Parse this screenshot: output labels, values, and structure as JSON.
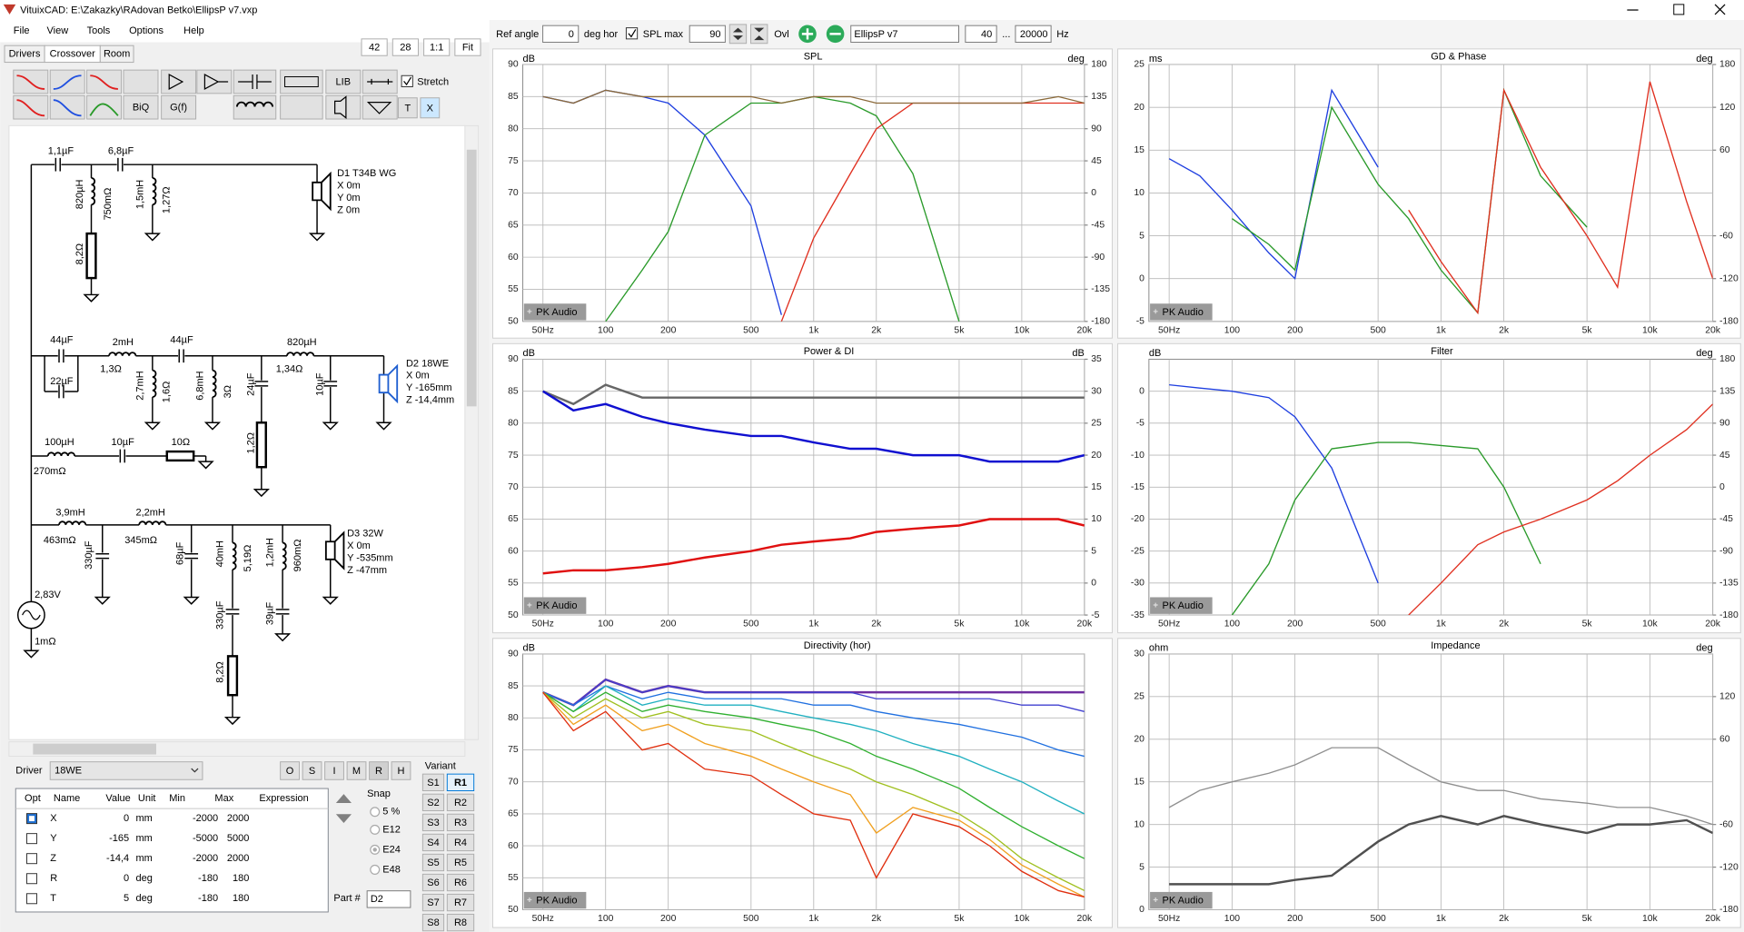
{
  "window": {
    "title": "VituixCAD: E:\\Zakazky\\RAdovan Betko\\EllipsP v7.vxp"
  },
  "menu": [
    "File",
    "View",
    "Tools",
    "Options",
    "Help"
  ],
  "zoom": [
    "42",
    "28",
    "1:1",
    "Fit"
  ],
  "tabs": [
    "Drivers",
    "Crossover",
    "Room"
  ],
  "tool_buttons": [
    "LIB",
    "BiQ",
    "G(f)",
    "T",
    "X"
  ],
  "stretch": "Stretch",
  "schematic": {
    "labels": [
      "1,1µF",
      "6,8µF",
      "820µH",
      "750mΩ",
      "1,5mH",
      "1,27Ω",
      "8,2Ω",
      "D1 T34B WG",
      "X  0m",
      "Y  0m",
      "Z  0m",
      "44µF",
      "2mH",
      "44µF",
      "820µH",
      "1,3Ω",
      "1,34Ω",
      "22µF",
      "2,7mH",
      "1,6Ω",
      "6,8mH",
      "3Ω",
      "24µF",
      "10µF",
      "1,2Ω",
      "D2 18WE",
      "X  0m",
      "Y  -165mm",
      "Z  -14,4mm",
      "100µH",
      "270mΩ",
      "10µF",
      "10Ω",
      "3,9mH",
      "2,2mH",
      "463mΩ",
      "345mΩ",
      "330µF",
      "68µF",
      "40mH",
      "5,19Ω",
      "1,2mH",
      "960mΩ",
      "D3 32W",
      "X  0m",
      "Y  -535mm",
      "Z  -47mm",
      "330µF",
      "39µF",
      "8,2Ω",
      "2,83V",
      "1mΩ"
    ]
  },
  "driver_panel": {
    "label": "Driver",
    "driver": "18WE",
    "modes": [
      "O",
      "S",
      "I",
      "M",
      "R",
      "H"
    ],
    "table": {
      "headers": [
        "Opt",
        "Name",
        "Value",
        "Unit",
        "Min",
        "Max",
        "Expression"
      ],
      "rows": [
        [
          "X",
          "0",
          "mm",
          "-2000",
          "2000"
        ],
        [
          "Y",
          "-165",
          "mm",
          "-5000",
          "5000"
        ],
        [
          "Z",
          "-14,4",
          "mm",
          "-2000",
          "2000"
        ],
        [
          "R",
          "0",
          "deg",
          "-180",
          "180"
        ],
        [
          "T",
          "5",
          "deg",
          "-180",
          "180"
        ]
      ]
    },
    "snap": {
      "label": "Snap",
      "options": [
        "5 %",
        "E12",
        "E24",
        "E48"
      ]
    },
    "part_label": "Part #",
    "part": "D2",
    "variant": {
      "label": "Variant",
      "s": [
        "S1",
        "S2",
        "S3",
        "S4",
        "S5",
        "S6",
        "S7",
        "S8"
      ],
      "r": [
        "R1",
        "R2",
        "R3",
        "R4",
        "R5",
        "R6",
        "R7",
        "R8"
      ]
    }
  },
  "chart_toolbar": {
    "ref_angle_label": "Ref angle",
    "ref_angle": "0",
    "deg_hor": "deg hor",
    "spl_max_label": "SPL max",
    "spl_max": "90",
    "ovl": "Ovl",
    "name": "EllipsP v7",
    "f_min": "40",
    "dots": "...",
    "f_max": "20000",
    "hz": "Hz"
  },
  "watermark": "PK Audio",
  "chart_data": [
    {
      "type": "line",
      "title": "SPL",
      "y_label": "dB",
      "y2_label": "deg",
      "xscale": "log",
      "grid": true,
      "x": [
        50,
        70,
        100,
        150,
        200,
        300,
        500,
        700,
        1000,
        1500,
        2000,
        3000,
        5000,
        7000,
        10000,
        15000,
        20000
      ],
      "xlim": [
        40,
        20000
      ],
      "xticks": [
        {
          "value": 50,
          "label": "50Hz"
        },
        100,
        200,
        500,
        {
          "value": 1000,
          "label": "1k"
        },
        {
          "value": 2000,
          "label": "2k"
        },
        {
          "value": 5000,
          "label": "5k"
        },
        {
          "value": 10000,
          "label": "10k"
        },
        {
          "value": 20000,
          "label": "20k"
        }
      ],
      "ylim": [
        50,
        90
      ],
      "yticks": [
        90,
        85,
        80,
        75,
        70,
        65,
        60,
        55,
        50
      ],
      "y2lim": [
        -180,
        180
      ],
      "y2ticks": [
        180,
        135,
        90,
        45,
        0,
        -45,
        -90,
        -135,
        -180
      ],
      "series": [
        {
          "color": "#1f3fe0",
          "values": [
            85,
            84,
            86,
            85,
            84,
            79,
            68,
            51,
            null,
            null,
            null,
            null,
            null,
            null,
            null,
            null,
            null
          ]
        },
        {
          "color": "#2a9a2a",
          "values": [
            null,
            null,
            50,
            58,
            64,
            79,
            84,
            84,
            85,
            84,
            82,
            73,
            50,
            null,
            null,
            null,
            null
          ]
        },
        {
          "color": "#e03020",
          "values": [
            null,
            null,
            null,
            null,
            null,
            null,
            null,
            50,
            63,
            73,
            80,
            84,
            84,
            84,
            84,
            84,
            84
          ]
        },
        {
          "color": "#8b6a3a",
          "values": [
            85,
            84,
            86,
            85,
            85,
            85,
            85,
            84,
            85,
            85,
            84,
            84,
            84,
            84,
            84,
            85,
            84
          ]
        }
      ]
    },
    {
      "type": "line",
      "title": "GD & Phase",
      "y_label": "ms",
      "y2_label": "deg",
      "xscale": "log",
      "grid": true,
      "x": [
        50,
        70,
        100,
        150,
        200,
        300,
        500,
        700,
        1000,
        1500,
        2000,
        3000,
        5000,
        7000,
        10000,
        15000,
        20000
      ],
      "xlim": [
        40,
        20000
      ],
      "xticks": [
        {
          "value": 50,
          "label": "50Hz"
        },
        100,
        200,
        500,
        {
          "value": 1000,
          "label": "1k"
        },
        {
          "value": 2000,
          "label": "2k"
        },
        {
          "value": 5000,
          "label": "5k"
        },
        {
          "value": 10000,
          "label": "10k"
        },
        {
          "value": 20000,
          "label": "20k"
        }
      ],
      "ylim": [
        -5,
        25
      ],
      "yticks": [
        25,
        20,
        15,
        10,
        5,
        0,
        -5
      ],
      "y2lim": [
        -180,
        180
      ],
      "y2ticks": [
        180,
        120,
        60,
        -60,
        -120,
        -180
      ],
      "series": [
        {
          "color": "#1f3fe0",
          "values": [
            14,
            12,
            8,
            3,
            0,
            22,
            13,
            null,
            null,
            null,
            null,
            null,
            null,
            null,
            null,
            null,
            null
          ]
        },
        {
          "color": "#2a9a2a",
          "values": [
            null,
            null,
            7,
            4,
            1,
            20,
            11,
            7,
            1,
            -4,
            22,
            12,
            6,
            null,
            null,
            null,
            null
          ]
        },
        {
          "color": "#e03020",
          "values": [
            null,
            null,
            null,
            null,
            null,
            null,
            null,
            8,
            2,
            -4,
            22,
            13,
            5,
            -1,
            23,
            9,
            0
          ]
        }
      ]
    },
    {
      "type": "line",
      "title": "Power & DI",
      "y_label": "dB",
      "y2_label": "dB",
      "xscale": "log",
      "grid": true,
      "x": [
        50,
        70,
        100,
        150,
        200,
        300,
        500,
        700,
        1000,
        1500,
        2000,
        3000,
        5000,
        7000,
        10000,
        15000,
        20000
      ],
      "xlim": [
        40,
        20000
      ],
      "xticks": [
        {
          "value": 50,
          "label": "50Hz"
        },
        100,
        200,
        500,
        {
          "value": 1000,
          "label": "1k"
        },
        {
          "value": 2000,
          "label": "2k"
        },
        {
          "value": 5000,
          "label": "5k"
        },
        {
          "value": 10000,
          "label": "10k"
        },
        {
          "value": 20000,
          "label": "20k"
        }
      ],
      "ylim": [
        50,
        90
      ],
      "yticks": [
        90,
        85,
        80,
        75,
        70,
        65,
        60,
        55,
        50
      ],
      "y2lim": [
        -5,
        35
      ],
      "y2ticks": [
        35,
        30,
        25,
        20,
        15,
        10,
        5,
        0,
        -5
      ],
      "series": [
        {
          "color": "#666666",
          "line_width": 2,
          "values": [
            85,
            83,
            86,
            84,
            84,
            84,
            84,
            84,
            84,
            84,
            84,
            84,
            84,
            84,
            84,
            84,
            84
          ]
        },
        {
          "color": "#1010d0",
          "line_width": 2,
          "values": [
            85,
            82,
            83,
            81,
            80,
            79,
            78,
            78,
            77,
            76,
            76,
            75,
            75,
            74,
            74,
            74,
            75
          ]
        },
        {
          "color": "#e01010",
          "line_width": 2,
          "axis": "y2",
          "values": [
            1.5,
            2,
            2,
            2.5,
            3,
            4,
            5,
            6,
            6.5,
            7,
            8,
            8.5,
            9,
            10,
            10,
            10,
            9
          ]
        }
      ]
    },
    {
      "type": "line",
      "title": "Filter",
      "y_label": "dB",
      "y2_label": "deg",
      "xscale": "log",
      "grid": true,
      "x": [
        50,
        70,
        100,
        150,
        200,
        300,
        500,
        700,
        1000,
        1500,
        2000,
        3000,
        5000,
        7000,
        10000,
        15000,
        20000
      ],
      "xlim": [
        40,
        20000
      ],
      "xticks": [
        {
          "value": 50,
          "label": "50Hz"
        },
        100,
        200,
        500,
        {
          "value": 1000,
          "label": "1k"
        },
        {
          "value": 2000,
          "label": "2k"
        },
        {
          "value": 5000,
          "label": "5k"
        },
        {
          "value": 10000,
          "label": "10k"
        },
        {
          "value": 20000,
          "label": "20k"
        }
      ],
      "ylim": [
        -35,
        5
      ],
      "yticks": [
        0,
        -5,
        -10,
        -15,
        -20,
        -25,
        -30,
        -35
      ],
      "y2lim": [
        -180,
        180
      ],
      "y2ticks": [
        180,
        135,
        90,
        45,
        0,
        -45,
        -90,
        -135,
        -180
      ],
      "series": [
        {
          "color": "#1f3fe0",
          "values": [
            1,
            0.5,
            0,
            -1,
            -4,
            -12,
            -30,
            null,
            null,
            null,
            null,
            null,
            null,
            null,
            null,
            null,
            null
          ]
        },
        {
          "color": "#2a9a2a",
          "values": [
            null,
            null,
            -35,
            -27,
            -17,
            -9,
            -8,
            -8,
            -8.5,
            -9,
            -15,
            -27,
            null,
            null,
            null,
            null,
            null
          ]
        },
        {
          "color": "#e03020",
          "values": [
            null,
            null,
            null,
            null,
            null,
            null,
            null,
            -35,
            -30,
            -24,
            -22,
            -20,
            -17,
            -14,
            -10,
            -6,
            -2
          ]
        }
      ]
    },
    {
      "type": "line",
      "title": "Directivity (hor)",
      "y_label": "dB",
      "xscale": "log",
      "grid": true,
      "x": [
        50,
        70,
        100,
        150,
        200,
        300,
        500,
        700,
        1000,
        1500,
        2000,
        3000,
        5000,
        7000,
        10000,
        15000,
        20000
      ],
      "xlim": [
        40,
        20000
      ],
      "xticks": [
        {
          "value": 50,
          "label": "50Hz"
        },
        100,
        200,
        500,
        {
          "value": 1000,
          "label": "1k"
        },
        {
          "value": 2000,
          "label": "2k"
        },
        {
          "value": 5000,
          "label": "5k"
        },
        {
          "value": 10000,
          "label": "10k"
        },
        {
          "value": 20000,
          "label": "20k"
        }
      ],
      "ylim": [
        50,
        90
      ],
      "yticks": [
        90,
        85,
        80,
        75,
        70,
        65,
        60,
        55,
        50
      ],
      "series": [
        {
          "color": "#7030a0",
          "line_width": 2,
          "values": [
            84,
            82,
            86,
            84,
            85,
            84,
            84,
            84,
            84,
            84,
            84,
            84,
            84,
            84,
            84,
            84,
            84
          ]
        },
        {
          "color": "#4040d0",
          "values": [
            84,
            82,
            86,
            84,
            85,
            84,
            84,
            84,
            84,
            84,
            83,
            83,
            83,
            83,
            82,
            82,
            81
          ]
        },
        {
          "color": "#2070e0",
          "values": [
            84,
            82,
            85,
            83,
            84,
            83,
            83,
            83,
            82,
            82,
            81,
            80,
            79,
            78,
            77,
            75,
            74
          ]
        },
        {
          "color": "#20b0c0",
          "values": [
            84,
            81,
            85,
            82,
            83,
            82,
            82,
            81,
            80,
            79,
            78,
            76,
            74,
            72,
            70,
            67,
            65
          ]
        },
        {
          "color": "#30b030",
          "values": [
            84,
            81,
            84,
            81,
            82,
            81,
            80,
            79,
            78,
            76,
            74,
            72,
            69,
            66,
            63,
            60,
            58
          ]
        },
        {
          "color": "#a0c020",
          "values": [
            84,
            80,
            83,
            80,
            81,
            79,
            78,
            76,
            74,
            72,
            70,
            68,
            65,
            62,
            58,
            55,
            53
          ]
        },
        {
          "color": "#f0a020",
          "values": [
            84,
            79,
            82,
            78,
            79,
            76,
            74,
            72,
            70,
            68,
            62,
            66,
            64,
            61,
            57,
            54,
            52
          ]
        },
        {
          "color": "#e03010",
          "values": [
            84,
            78,
            81,
            75,
            76,
            72,
            71,
            68,
            65,
            64,
            55,
            65,
            63,
            60,
            56,
            53,
            52
          ]
        }
      ]
    },
    {
      "type": "line",
      "title": "Impedance",
      "y_label": "ohm",
      "y2_label": "deg",
      "xscale": "log",
      "grid": true,
      "x": [
        50,
        70,
        100,
        150,
        200,
        300,
        500,
        700,
        1000,
        1500,
        2000,
        3000,
        5000,
        7000,
        10000,
        15000,
        20000
      ],
      "xlim": [
        40,
        20000
      ],
      "xticks": [
        {
          "value": 50,
          "label": "50Hz"
        },
        100,
        200,
        500,
        {
          "value": 1000,
          "label": "1k"
        },
        {
          "value": 2000,
          "label": "2k"
        },
        {
          "value": 5000,
          "label": "5k"
        },
        {
          "value": 10000,
          "label": "10k"
        },
        {
          "value": 20000,
          "label": "20k"
        }
      ],
      "ylim": [
        0,
        30
      ],
      "yticks": [
        30,
        25,
        20,
        15,
        10,
        5,
        0
      ],
      "y2lim": [
        -180,
        180
      ],
      "y2ticks": [
        120,
        60,
        -60,
        -120,
        -180
      ],
      "series": [
        {
          "color": "#909090",
          "values": [
            12,
            14,
            15,
            16,
            17,
            19,
            19,
            17,
            15,
            14,
            14,
            13,
            12.5,
            12,
            12,
            11,
            10
          ]
        },
        {
          "color": "#505050",
          "line_width": 2,
          "values": [
            3,
            3,
            3,
            3,
            3.5,
            4,
            8,
            10,
            11,
            10,
            11,
            10,
            9,
            10,
            10,
            10.5,
            9
          ]
        }
      ]
    }
  ]
}
